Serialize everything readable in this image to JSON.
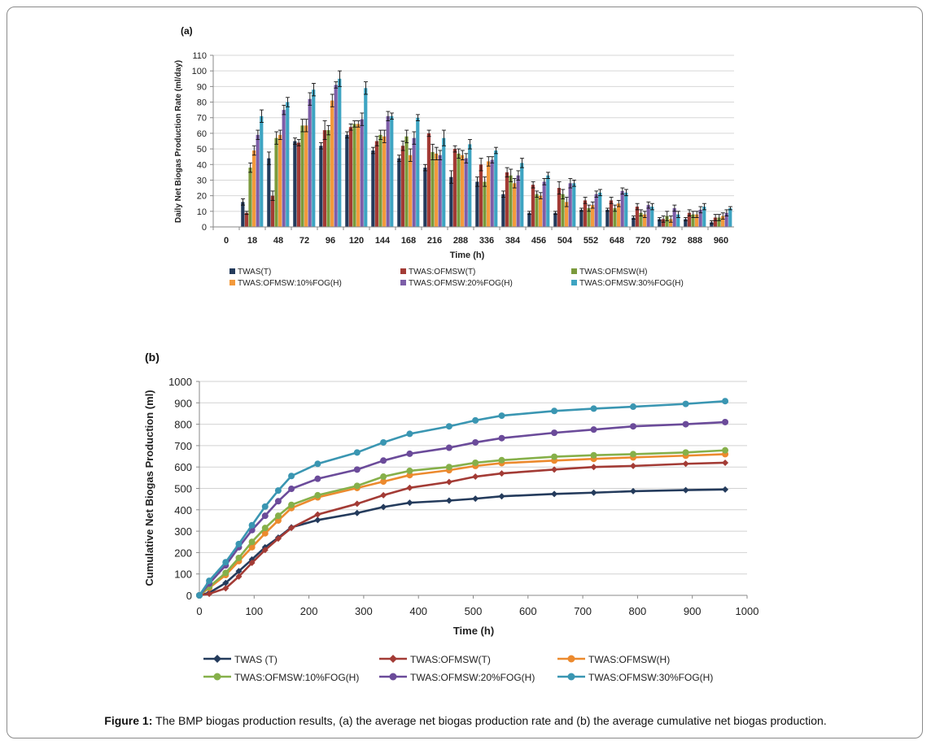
{
  "figure": {
    "caption_label": "Figure 1:",
    "caption_text": "The BMP biogas production results, (a) the average net biogas production rate and (b) the average cumulative net biogas production."
  },
  "colors": {
    "TWAS(T)": "#243b5c",
    "TWAS:OFMSW(T)": "#a33b35",
    "TWAS:OFMSW(H)": "#7b9a3c",
    "FOG10": "#f39a3c",
    "FOG20": "#7d5ea8",
    "FOG30": "#3ea4c2",
    "line_FOG10": "#86b04a",
    "line_OFMSW_H": "#ec8a2e",
    "line_FOG20": "#6b4b9a",
    "line_FOG30": "#3a96b2"
  },
  "chart_data": [
    {
      "id": "a",
      "type": "bar",
      "panel_label": "(a)",
      "xlabel": "Time (h)",
      "ylabel": "Daily Net Biogas Production Rate (ml/day)",
      "ylim": [
        0,
        110
      ],
      "yticks": [
        0,
        10,
        20,
        30,
        40,
        50,
        60,
        70,
        80,
        90,
        100,
        110
      ],
      "categories": [
        "0",
        "18",
        "48",
        "72",
        "96",
        "120",
        "144",
        "168",
        "216",
        "288",
        "336",
        "384",
        "456",
        "504",
        "552",
        "648",
        "720",
        "792",
        "888",
        "960"
      ],
      "legend_position": "bottom",
      "series": [
        {
          "name": "TWAS(T)",
          "color_key": "TWAS(T)",
          "values": [
            0,
            16,
            44,
            55,
            52,
            59,
            49,
            44,
            38,
            32,
            29,
            21,
            9,
            9,
            11,
            11,
            6,
            5,
            5,
            3
          ],
          "errors": [
            0,
            2,
            4,
            2,
            2,
            2,
            2,
            2,
            2,
            4,
            3,
            2,
            1,
            1,
            1,
            1,
            1,
            1,
            1,
            1
          ]
        },
        {
          "name": "TWAS:OFMSW(T)",
          "color_key": "TWAS:OFMSW(T)",
          "values": [
            0,
            9,
            20,
            54,
            62,
            64,
            55,
            52,
            60,
            50,
            40,
            35,
            27,
            25,
            17,
            17,
            13,
            5,
            9,
            6
          ],
          "errors": [
            0,
            1,
            3,
            2,
            6,
            2,
            3,
            3,
            2,
            2,
            4,
            3,
            2,
            4,
            2,
            2,
            2,
            2,
            2,
            2
          ]
        },
        {
          "name": "TWAS:OFMSW(H)",
          "color_key": "TWAS:OFMSW(H)",
          "values": [
            0,
            38,
            57,
            65,
            62,
            66,
            59,
            58,
            48,
            47,
            29,
            33,
            21,
            21,
            12,
            12,
            9,
            7,
            8,
            6
          ],
          "errors": [
            0,
            3,
            4,
            4,
            3,
            2,
            3,
            4,
            5,
            3,
            3,
            4,
            2,
            3,
            2,
            2,
            2,
            3,
            2,
            2
          ]
        },
        {
          "name": "TWAS:OFMSW:10%FOG(H)",
          "color_key": "FOG10",
          "values": [
            0,
            49,
            59,
            65,
            81,
            66,
            58,
            46,
            47,
            46,
            42,
            28,
            20,
            16,
            14,
            15,
            8,
            5,
            8,
            7
          ],
          "errors": [
            0,
            3,
            3,
            4,
            4,
            2,
            4,
            4,
            4,
            3,
            3,
            3,
            2,
            3,
            2,
            2,
            2,
            2,
            2,
            2
          ]
        },
        {
          "name": "TWAS:OFMSW:20%FOG(H)",
          "color_key": "FOG20",
          "values": [
            0,
            59,
            75,
            82,
            91,
            69,
            71,
            57,
            46,
            44,
            43,
            33,
            29,
            28,
            21,
            23,
            14,
            12,
            11,
            9
          ],
          "errors": [
            0,
            3,
            3,
            4,
            2,
            4,
            3,
            4,
            3,
            3,
            2,
            3,
            2,
            3,
            2,
            2,
            2,
            2,
            2,
            2
          ]
        },
        {
          "name": "TWAS:OFMSW:30%FOG(H)",
          "color_key": "FOG30",
          "values": [
            0,
            71,
            80,
            88,
            95,
            89,
            71,
            70,
            57,
            53,
            49,
            41,
            33,
            28,
            22,
            22,
            13,
            8,
            13,
            12
          ],
          "errors": [
            0,
            4,
            3,
            4,
            5,
            4,
            2,
            2,
            5,
            3,
            2,
            3,
            2,
            2,
            2,
            2,
            2,
            2,
            2,
            1
          ]
        }
      ]
    },
    {
      "id": "b",
      "type": "line",
      "panel_label": "(b)",
      "xlabel": "Time (h)",
      "ylabel": "Cumulative Net Biogas Production (ml)",
      "xlim": [
        0,
        1000
      ],
      "ylim": [
        0,
        1000
      ],
      "xticks": [
        0,
        100,
        200,
        300,
        400,
        500,
        600,
        700,
        800,
        900,
        1000
      ],
      "yticks": [
        0,
        100,
        200,
        300,
        400,
        500,
        600,
        700,
        800,
        900,
        1000
      ],
      "x": [
        0,
        18,
        48,
        72,
        96,
        120,
        144,
        168,
        216,
        288,
        336,
        384,
        456,
        504,
        552,
        648,
        720,
        792,
        888,
        960
      ],
      "legend_position": "bottom",
      "series": [
        {
          "name": "TWAS (T)",
          "marker": "diamond",
          "color_key": "TWAS(T)",
          "values": [
            0,
            12,
            58,
            113,
            168,
            225,
            270,
            318,
            352,
            385,
            413,
            433,
            443,
            452,
            463,
            474,
            480,
            487,
            492,
            495
          ]
        },
        {
          "name": "TWAS:OFMSW(T)",
          "marker": "diamond",
          "color_key": "TWAS:OFMSW(T)",
          "values": [
            0,
            7,
            33,
            88,
            152,
            212,
            265,
            315,
            378,
            428,
            468,
            503,
            530,
            555,
            570,
            588,
            600,
            605,
            615,
            620
          ]
        },
        {
          "name": "TWAS:OFMSW(H)",
          "marker": "circle",
          "color_key": "line_OFMSW_H",
          "values": [
            0,
            35,
            95,
            160,
            225,
            290,
            350,
            408,
            458,
            502,
            532,
            562,
            585,
            605,
            618,
            630,
            638,
            645,
            653,
            660
          ]
        },
        {
          "name": "TWAS:OFMSW:10%FOG(H)",
          "marker": "circle",
          "color_key": "line_FOG10",
          "values": [
            0,
            40,
            105,
            175,
            250,
            315,
            372,
            423,
            468,
            512,
            555,
            582,
            600,
            620,
            632,
            648,
            655,
            660,
            668,
            678
          ]
        },
        {
          "name": "TWAS:OFMSW:20%FOG(H)",
          "marker": "circle",
          "color_key": "line_FOG20",
          "values": [
            0,
            55,
            140,
            225,
            305,
            372,
            440,
            498,
            545,
            588,
            630,
            662,
            690,
            715,
            735,
            760,
            775,
            790,
            800,
            810
          ]
        },
        {
          "name": "TWAS:OFMSW:30%FOG(H)",
          "marker": "circle",
          "color_key": "line_FOG30",
          "values": [
            0,
            68,
            155,
            240,
            328,
            415,
            490,
            558,
            615,
            668,
            715,
            755,
            790,
            818,
            840,
            862,
            873,
            882,
            895,
            908
          ]
        }
      ]
    }
  ]
}
